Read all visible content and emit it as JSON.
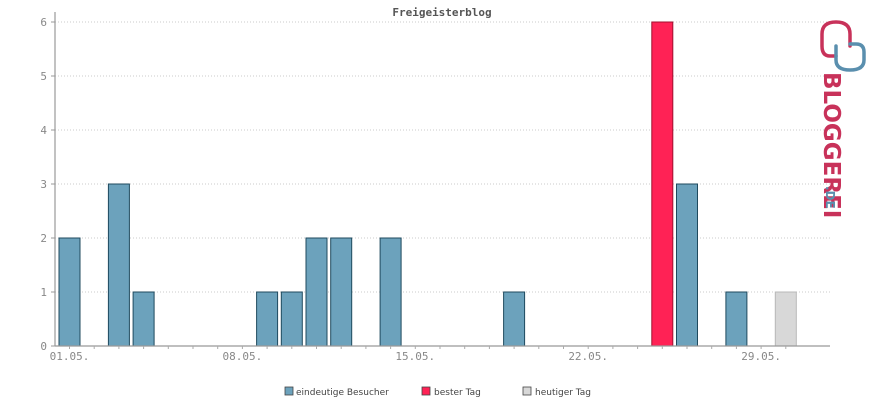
{
  "chart_data": {
    "type": "bar",
    "title": "Freigeisterblog",
    "x": [
      "01.05.",
      "02.05.",
      "03.05.",
      "04.05.",
      "05.05.",
      "06.05.",
      "07.05.",
      "08.05.",
      "09.05.",
      "10.05.",
      "11.05.",
      "12.05.",
      "13.05.",
      "14.05.",
      "15.05.",
      "16.05.",
      "17.05.",
      "18.05.",
      "19.05.",
      "20.05.",
      "21.05.",
      "22.05.",
      "23.05.",
      "24.05.",
      "25.05.",
      "26.05.",
      "27.05.",
      "28.05.",
      "29.05.",
      "30.05."
    ],
    "xticks": [
      "01.05.",
      "08.05.",
      "15.05.",
      "22.05.",
      "29.05."
    ],
    "yticks": [
      "0",
      "1",
      "2",
      "3",
      "4",
      "5",
      "6"
    ],
    "ylim": [
      0,
      6
    ],
    "values": [
      2,
      0,
      3,
      1,
      0,
      0,
      0,
      0,
      1,
      1,
      2,
      2,
      0,
      2,
      0,
      0,
      0,
      0,
      1,
      0,
      0,
      0,
      0,
      0,
      6,
      3,
      0,
      1,
      0,
      1
    ],
    "best_day_index": 24,
    "today_index": 29,
    "grid": true,
    "legend_position": "bottom",
    "legend": [
      {
        "name": "eindeutige Besucher",
        "color": "#6ca2bc"
      },
      {
        "name": "bester Tag",
        "color": "#ff2255"
      },
      {
        "name": "heutiger Tag",
        "color": "#d8d8d8"
      }
    ],
    "colors": {
      "normal": "#6ca2bc",
      "best": "#ff2255",
      "today": "#d8d8d8"
    }
  },
  "logo": {
    "name": "BLOGGEREI",
    "suffix": ".DE"
  }
}
